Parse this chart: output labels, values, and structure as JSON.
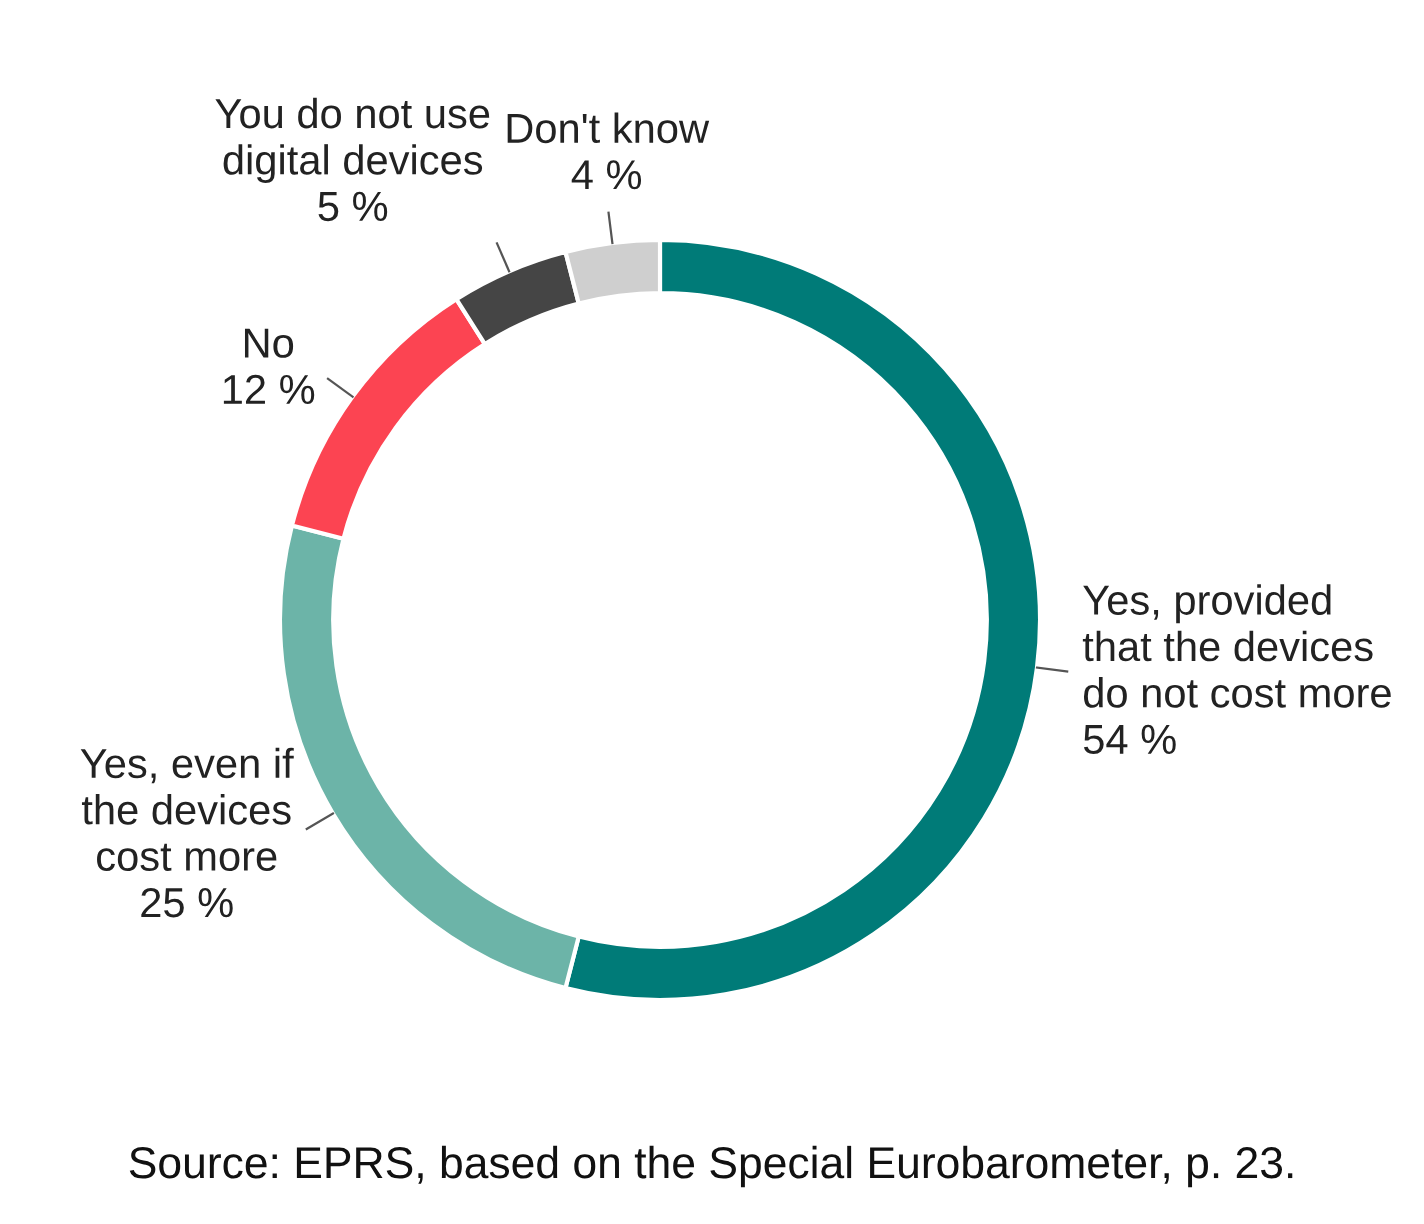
{
  "chart_data": {
    "type": "donut",
    "categories": [
      "Yes, provided\nthat the devices\ndo not cost more",
      "Yes, even if\nthe devices\ncost more",
      "No",
      "You do not use\ndigital devices",
      "Don't know"
    ],
    "values": [
      54,
      25,
      12,
      5,
      4
    ],
    "value_labels": [
      "54 %",
      "25 %",
      "12 %",
      "5 %",
      "4 %"
    ],
    "colors": [
      "#007b78",
      "#6cb4a8",
      "#fc4452",
      "#454545",
      "#cfcfcf"
    ],
    "annotations": [
      "Source: EPRS, based on the Special Eurobarometer, p. 23."
    ]
  }
}
